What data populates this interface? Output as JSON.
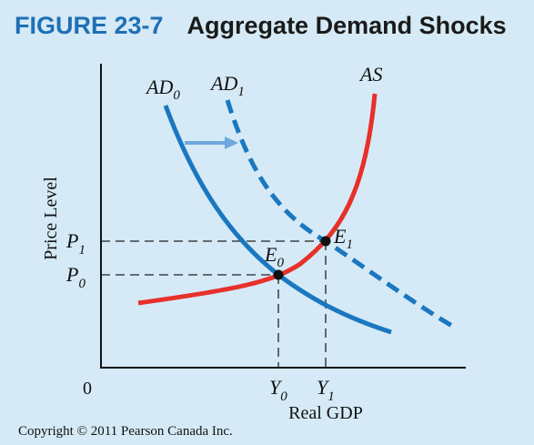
{
  "figure": {
    "number": "FIGURE 23-7",
    "title": "Aggregate Demand Shocks"
  },
  "axes": {
    "ylabel": "Price Level",
    "xlabel": "Real GDP",
    "origin": "0"
  },
  "curves": {
    "ad0": {
      "label": "AD",
      "sub": "0"
    },
    "ad1": {
      "label": "AD",
      "sub": "1"
    },
    "as": {
      "label": "AS"
    }
  },
  "points": {
    "e0": {
      "label": "E",
      "sub": "0"
    },
    "e1": {
      "label": "E",
      "sub": "1"
    }
  },
  "ticks": {
    "p1": {
      "label": "P",
      "sub": "1"
    },
    "p0": {
      "label": "P",
      "sub": "0"
    },
    "y0": {
      "label": "Y",
      "sub": "0"
    },
    "y1": {
      "label": "Y",
      "sub": "1"
    }
  },
  "colors": {
    "ad": "#1a77c0",
    "as": "#e8302b",
    "shift_arrow": "#6fa8dc",
    "background": "#d5eaf6",
    "title_accent": "#1f6fb6"
  },
  "copyright": "Copyright © 2011 Pearson Canada Inc."
}
